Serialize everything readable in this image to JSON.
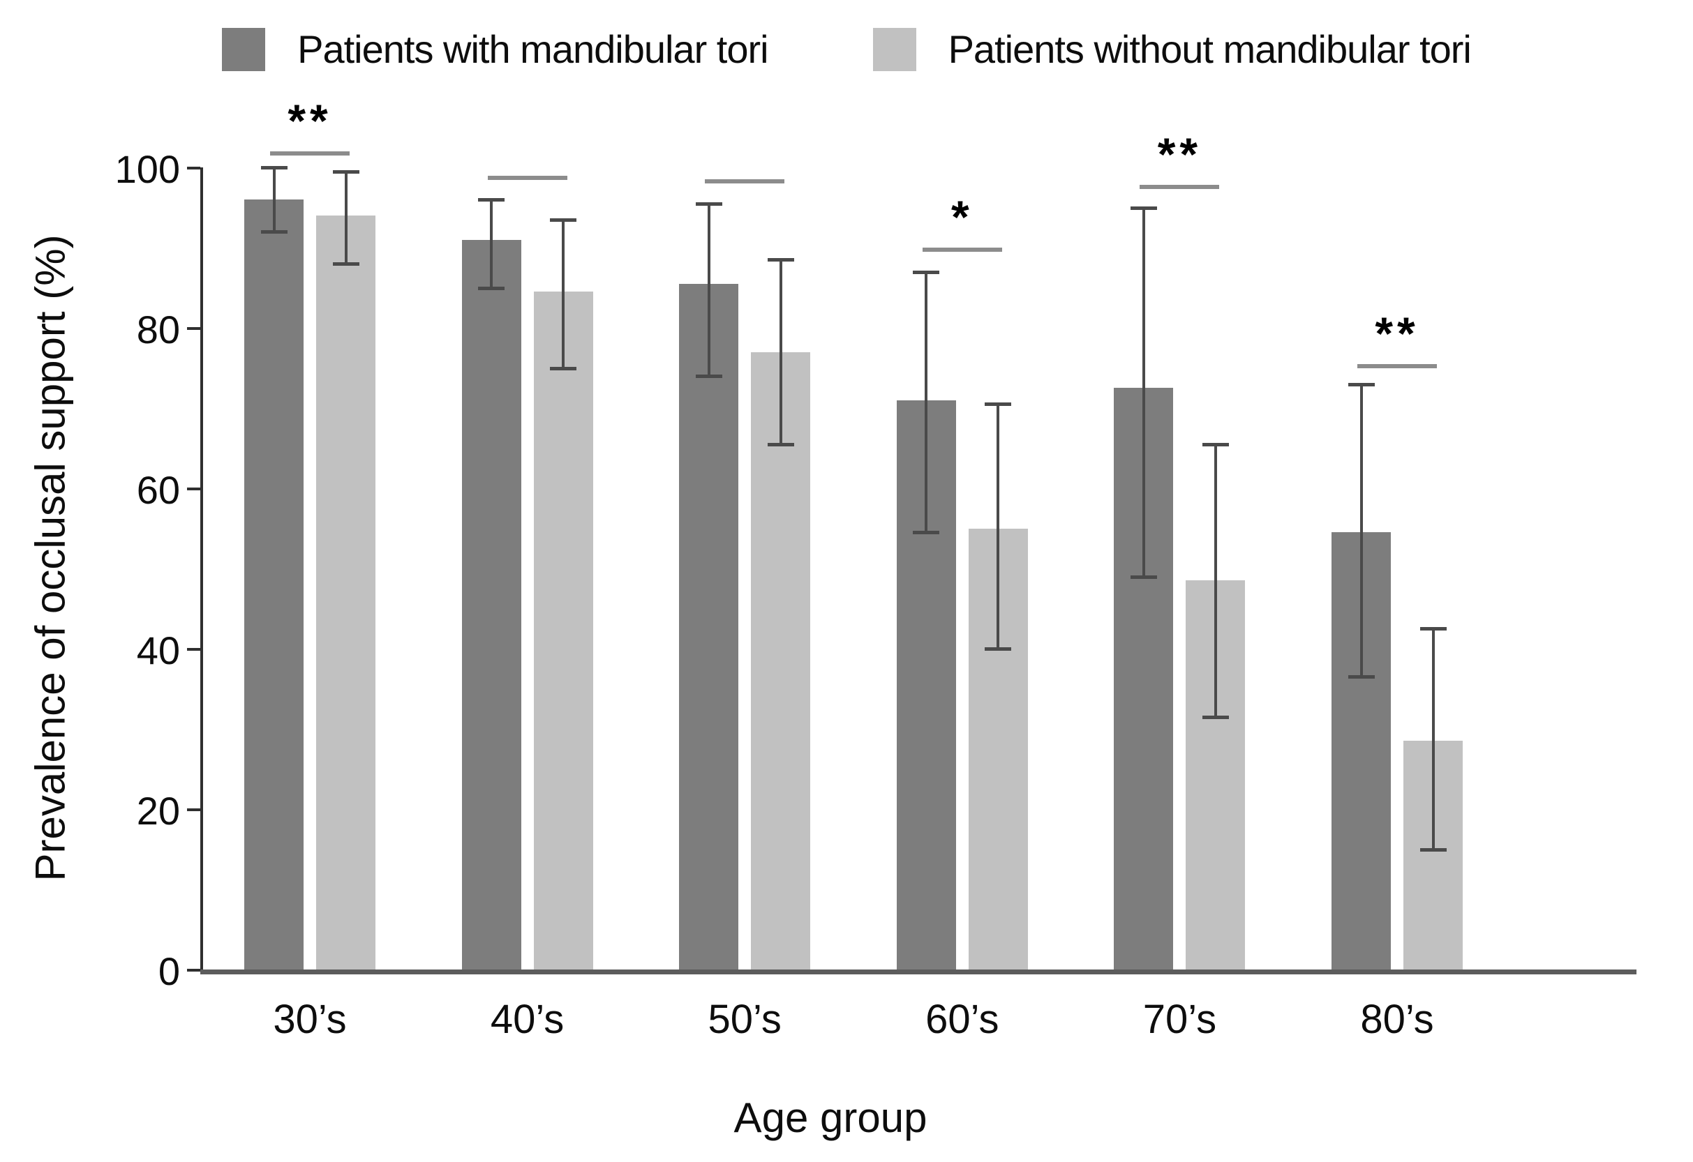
{
  "chart_data": {
    "type": "bar",
    "title": "",
    "xlabel": "Age group",
    "ylabel": "Prevalence of occlusal support (%)",
    "ylim": [
      0,
      100
    ],
    "yticks": [
      0,
      20,
      40,
      60,
      80,
      100
    ],
    "legend_position": "top",
    "grid": "off",
    "categories": [
      "30’s",
      "40’s",
      "50’s",
      "60’s",
      "70’s",
      "80’s"
    ],
    "series": [
      {
        "name": "Patients with mandibular tori",
        "color": "#7d7d7d",
        "values": [
          96,
          91,
          85.5,
          71,
          72.5,
          54.5
        ],
        "error_low": [
          92,
          85,
          74,
          54.5,
          49,
          36.5
        ],
        "error_high": [
          100,
          96,
          95.5,
          87,
          95,
          73
        ]
      },
      {
        "name": "Patients without mandibular tori",
        "color": "#c1c1c1",
        "values": [
          94,
          84.5,
          77,
          55,
          48.5,
          28.5
        ],
        "error_low": [
          88,
          75,
          65.5,
          40,
          31.5,
          15
        ],
        "error_high": [
          99.5,
          93.5,
          88.5,
          70.5,
          65.5,
          42.5
        ]
      }
    ],
    "significance": [
      {
        "label": "**",
        "line_y": 102
      },
      {
        "label": "",
        "line_y": 99
      },
      {
        "label": "",
        "line_y": 98.5
      },
      {
        "label": "*",
        "line_y": 90
      },
      {
        "label": "**",
        "line_y": 97.8
      },
      {
        "label": "**",
        "line_y": 75.5
      }
    ],
    "colors": {
      "error_bar": "#4a4a4a",
      "significance_line": "#8c8c8c",
      "axis": "#2f2f2f",
      "baseline": "#5c5c5c",
      "text": "#0d0d0d"
    }
  }
}
